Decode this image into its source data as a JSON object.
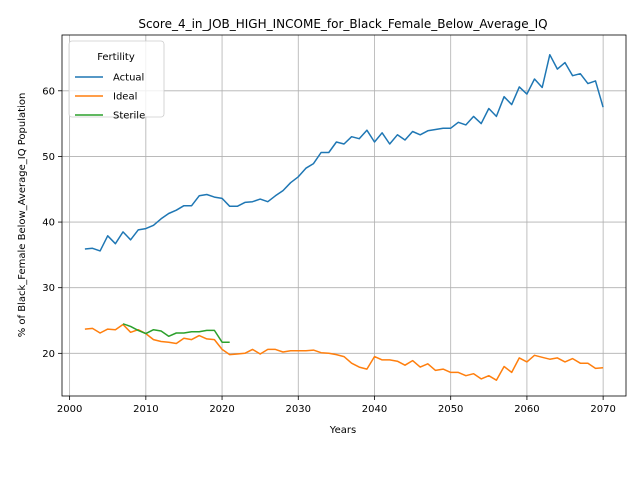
{
  "chart_data": {
    "type": "line",
    "title": "Score_4_in_JOB_HIGH_INCOME_for_Black_Female_Below_Average_IQ",
    "xlabel": "Years",
    "ylabel": "% of Black_Female Below_Average_IQ Population",
    "xlim": [
      1999,
      2073
    ],
    "ylim": [
      13.5,
      68.5
    ],
    "xticks": [
      2000,
      2010,
      2020,
      2030,
      2040,
      2050,
      2060,
      2070
    ],
    "yticks": [
      20,
      30,
      40,
      50,
      60
    ],
    "grid": true,
    "legend": {
      "title": "Fertility",
      "placement": "top-left"
    },
    "series": [
      {
        "name": "Actual",
        "color": "#1f77b4",
        "x": [
          2002,
          2003,
          2004,
          2005,
          2006,
          2007,
          2008,
          2009,
          2010,
          2011,
          2012,
          2013,
          2014,
          2015,
          2016,
          2017,
          2018,
          2019,
          2020,
          2021,
          2022,
          2023,
          2024,
          2025,
          2026,
          2027,
          2028,
          2029,
          2030,
          2031,
          2032,
          2033,
          2034,
          2035,
          2036,
          2037,
          2038,
          2039,
          2040,
          2041,
          2042,
          2043,
          2044,
          2045,
          2046,
          2047,
          2048,
          2049,
          2050,
          2051,
          2052,
          2053,
          2054,
          2055,
          2056,
          2057,
          2058,
          2059,
          2060,
          2061,
          2062,
          2063,
          2064,
          2065,
          2066,
          2067,
          2068,
          2069,
          2070
        ],
        "values": [
          35.9,
          36.0,
          35.6,
          37.9,
          36.7,
          38.5,
          37.3,
          38.8,
          39.0,
          39.5,
          40.5,
          41.3,
          41.8,
          42.5,
          42.5,
          44.0,
          44.2,
          43.8,
          43.6,
          42.4,
          42.4,
          43.0,
          43.1,
          43.5,
          43.1,
          44.0,
          44.8,
          46.0,
          46.9,
          48.2,
          48.9,
          50.6,
          50.6,
          52.2,
          51.9,
          53.0,
          52.7,
          54.0,
          52.2,
          53.6,
          51.9,
          53.3,
          52.5,
          53.8,
          53.3,
          53.9,
          54.1,
          54.3,
          54.3,
          55.2,
          54.8,
          56.1,
          55.0,
          57.3,
          56.1,
          59.1,
          57.9,
          60.6,
          59.5,
          61.8,
          60.5,
          65.5,
          63.3,
          64.3,
          62.3,
          62.6,
          61.1,
          61.5,
          57.5
        ]
      },
      {
        "name": "Ideal",
        "color": "#ff7f0e",
        "x": [
          2002,
          2003,
          2004,
          2005,
          2006,
          2007,
          2008,
          2009,
          2010,
          2011,
          2012,
          2013,
          2014,
          2015,
          2016,
          2017,
          2018,
          2019,
          2020,
          2021,
          2022,
          2023,
          2024,
          2025,
          2026,
          2027,
          2028,
          2029,
          2030,
          2031,
          2032,
          2033,
          2034,
          2035,
          2036,
          2037,
          2038,
          2039,
          2040,
          2041,
          2042,
          2043,
          2044,
          2045,
          2046,
          2047,
          2048,
          2049,
          2050,
          2051,
          2052,
          2053,
          2054,
          2055,
          2056,
          2057,
          2058,
          2059,
          2060,
          2061,
          2062,
          2063,
          2064,
          2065,
          2066,
          2067,
          2068,
          2069,
          2070
        ],
        "values": [
          23.7,
          23.8,
          23.1,
          23.7,
          23.6,
          24.4,
          23.2,
          23.6,
          23.0,
          22.1,
          21.8,
          21.7,
          21.5,
          22.3,
          22.1,
          22.7,
          22.2,
          22.1,
          20.6,
          19.8,
          19.9,
          20.0,
          20.6,
          19.9,
          20.6,
          20.6,
          20.2,
          20.4,
          20.4,
          20.4,
          20.5,
          20.1,
          20.0,
          19.8,
          19.5,
          18.5,
          17.9,
          17.6,
          19.5,
          19.0,
          19.0,
          18.8,
          18.2,
          18.9,
          17.9,
          18.4,
          17.4,
          17.6,
          17.1,
          17.1,
          16.6,
          16.9,
          16.1,
          16.6,
          15.9,
          18.0,
          17.1,
          19.3,
          18.7,
          19.7,
          19.4,
          19.1,
          19.3,
          18.7,
          19.2,
          18.5,
          18.5,
          17.7,
          17.8
        ]
      },
      {
        "name": "Sterile",
        "color": "#2ca02c",
        "x": [
          2007,
          2008,
          2009,
          2010,
          2011,
          2012,
          2013,
          2014,
          2015,
          2016,
          2017,
          2018,
          2019,
          2020,
          2021
        ],
        "values": [
          24.5,
          24.1,
          23.5,
          23.0,
          23.6,
          23.4,
          22.6,
          23.1,
          23.1,
          23.3,
          23.3,
          23.5,
          23.5,
          21.7,
          21.7
        ]
      }
    ]
  }
}
